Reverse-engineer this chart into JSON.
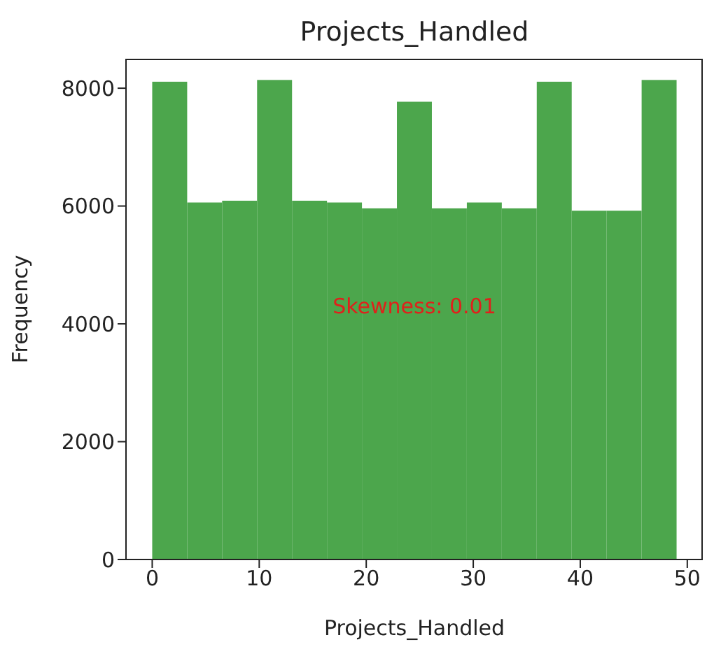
{
  "chart_data": {
    "type": "histogram",
    "title": "Projects_Handled",
    "xlabel": "Projects_Handled",
    "ylabel": "Frequency",
    "bins": [
      0,
      3.2667,
      6.5333,
      9.8,
      13.0667,
      16.3333,
      19.6,
      22.8667,
      26.1333,
      29.4,
      32.6667,
      35.9333,
      39.2,
      42.4667,
      45.7333,
      49
    ],
    "values": [
      8110,
      6060,
      6090,
      8140,
      6090,
      6060,
      5960,
      7770,
      5960,
      6060,
      5960,
      8110,
      5920,
      5920,
      8140
    ],
    "color": "#4ca64c",
    "xlim": [
      -2.45,
      51.45
    ],
    "xticks": [
      0,
      10,
      20,
      30,
      40,
      50
    ],
    "ylim": [
      0,
      8500
    ],
    "yticks": [
      0,
      2000,
      4000,
      6000,
      8000
    ],
    "grid": false,
    "annotations": [
      "Skewness: 0.01"
    ]
  }
}
